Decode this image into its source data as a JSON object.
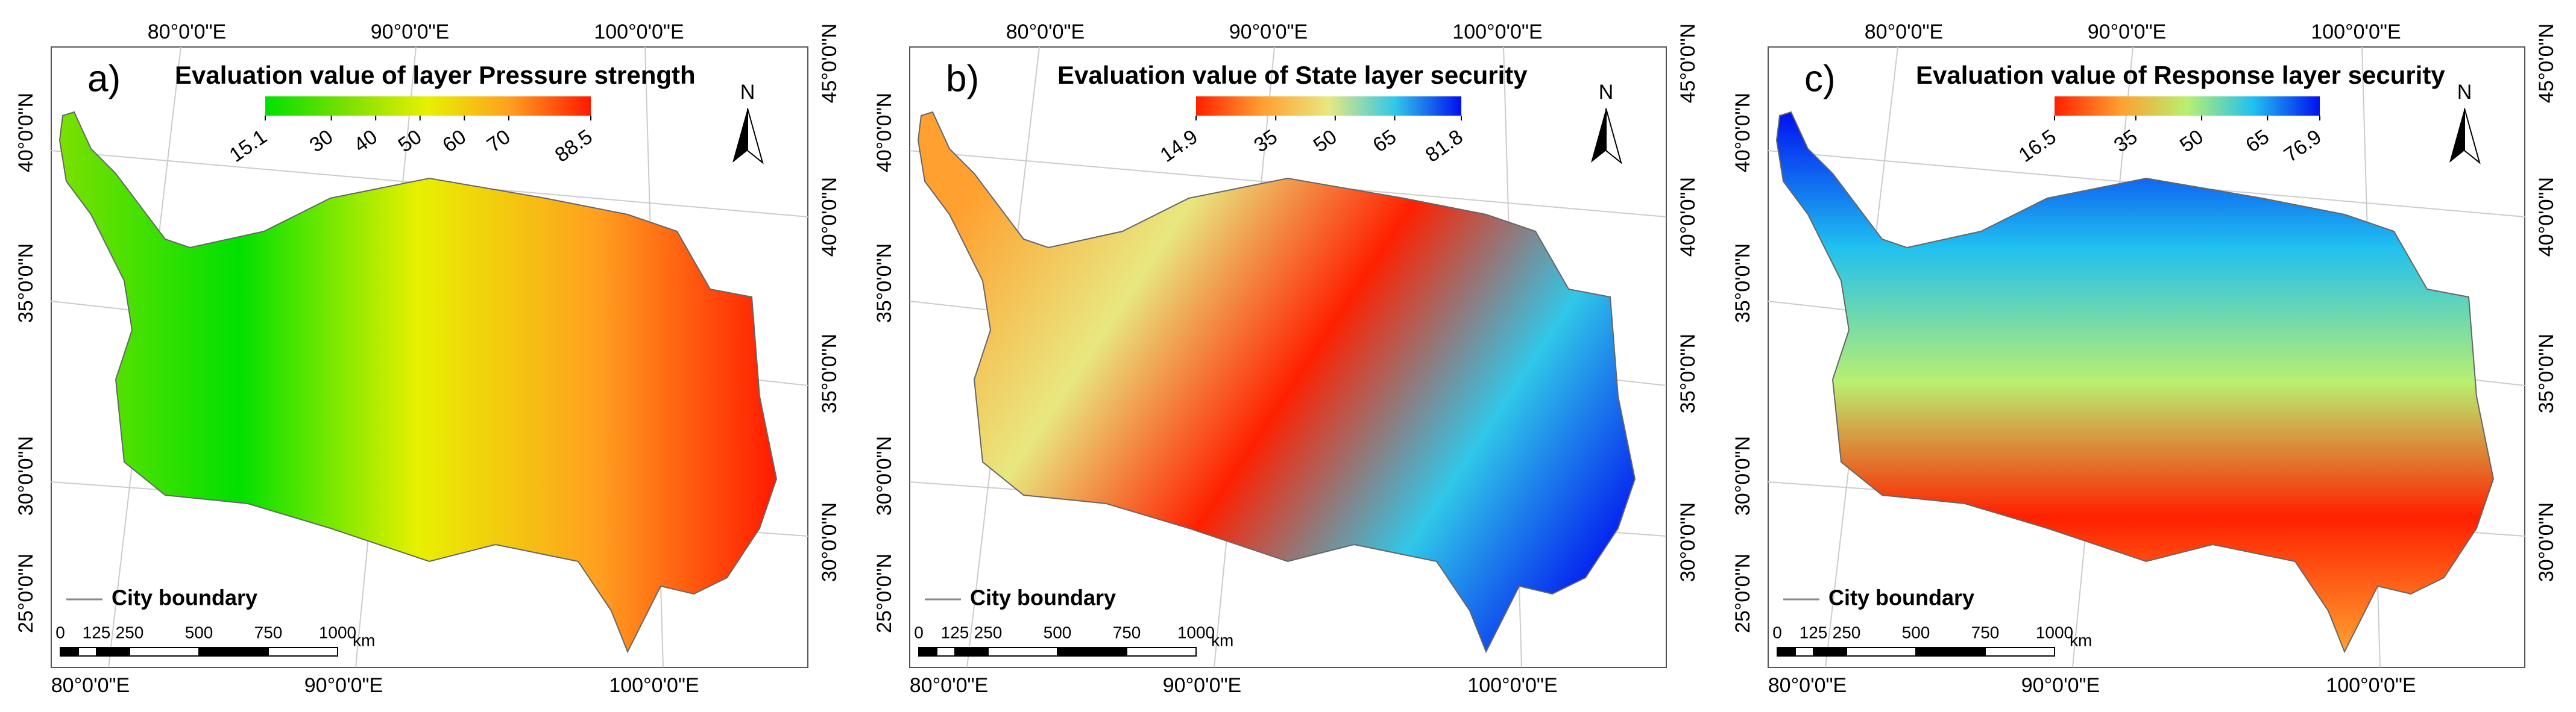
{
  "panels": [
    {
      "label": "a)",
      "title": "Evaluation value of layer Pressure strength",
      "colorbar": {
        "ticks": [
          15.1,
          30,
          40,
          50,
          60,
          70,
          88.5
        ],
        "colors": [
          "#00e000",
          "#7be000",
          "#e8f000",
          "#ffa020",
          "#ff1a00"
        ]
      }
    },
    {
      "label": "b)",
      "title": "Evaluation value of State layer security",
      "colorbar": {
        "ticks": [
          14.9,
          35,
          50,
          65,
          81.8
        ],
        "colors": [
          "#ff2000",
          "#ffa030",
          "#e8e880",
          "#30c8e8",
          "#0010f0"
        ]
      }
    },
    {
      "label": "c)",
      "title": "Evaluation value of Response layer security",
      "colorbar": {
        "ticks": [
          16.5,
          35,
          50,
          65,
          76.9
        ],
        "colors": [
          "#ff2000",
          "#ffa030",
          "#b8f070",
          "#20c0f0",
          "#0010f0"
        ]
      }
    }
  ],
  "common": {
    "top_longitudes": [
      "80°0'0\"E",
      "90°0'0\"E",
      "100°0'0\"E"
    ],
    "bottom_longitudes": [
      "80°0'0\"E",
      "90°0'0\"E",
      "100°0'0\"E"
    ],
    "left_latitudes": [
      "40°0'0\"N",
      "35°0'0\"N",
      "30°0'0\"N",
      "25°0'0\"N"
    ],
    "right_latitudes": [
      "45°0'0\"N",
      "40°0'0\"N",
      "35°0'0\"N",
      "30°0'0\"N"
    ],
    "north": "N",
    "legend": "City boundary",
    "scale_labels": [
      "0",
      "125",
      "250",
      "500",
      "750",
      "1000"
    ],
    "scale_unit": "km"
  }
}
